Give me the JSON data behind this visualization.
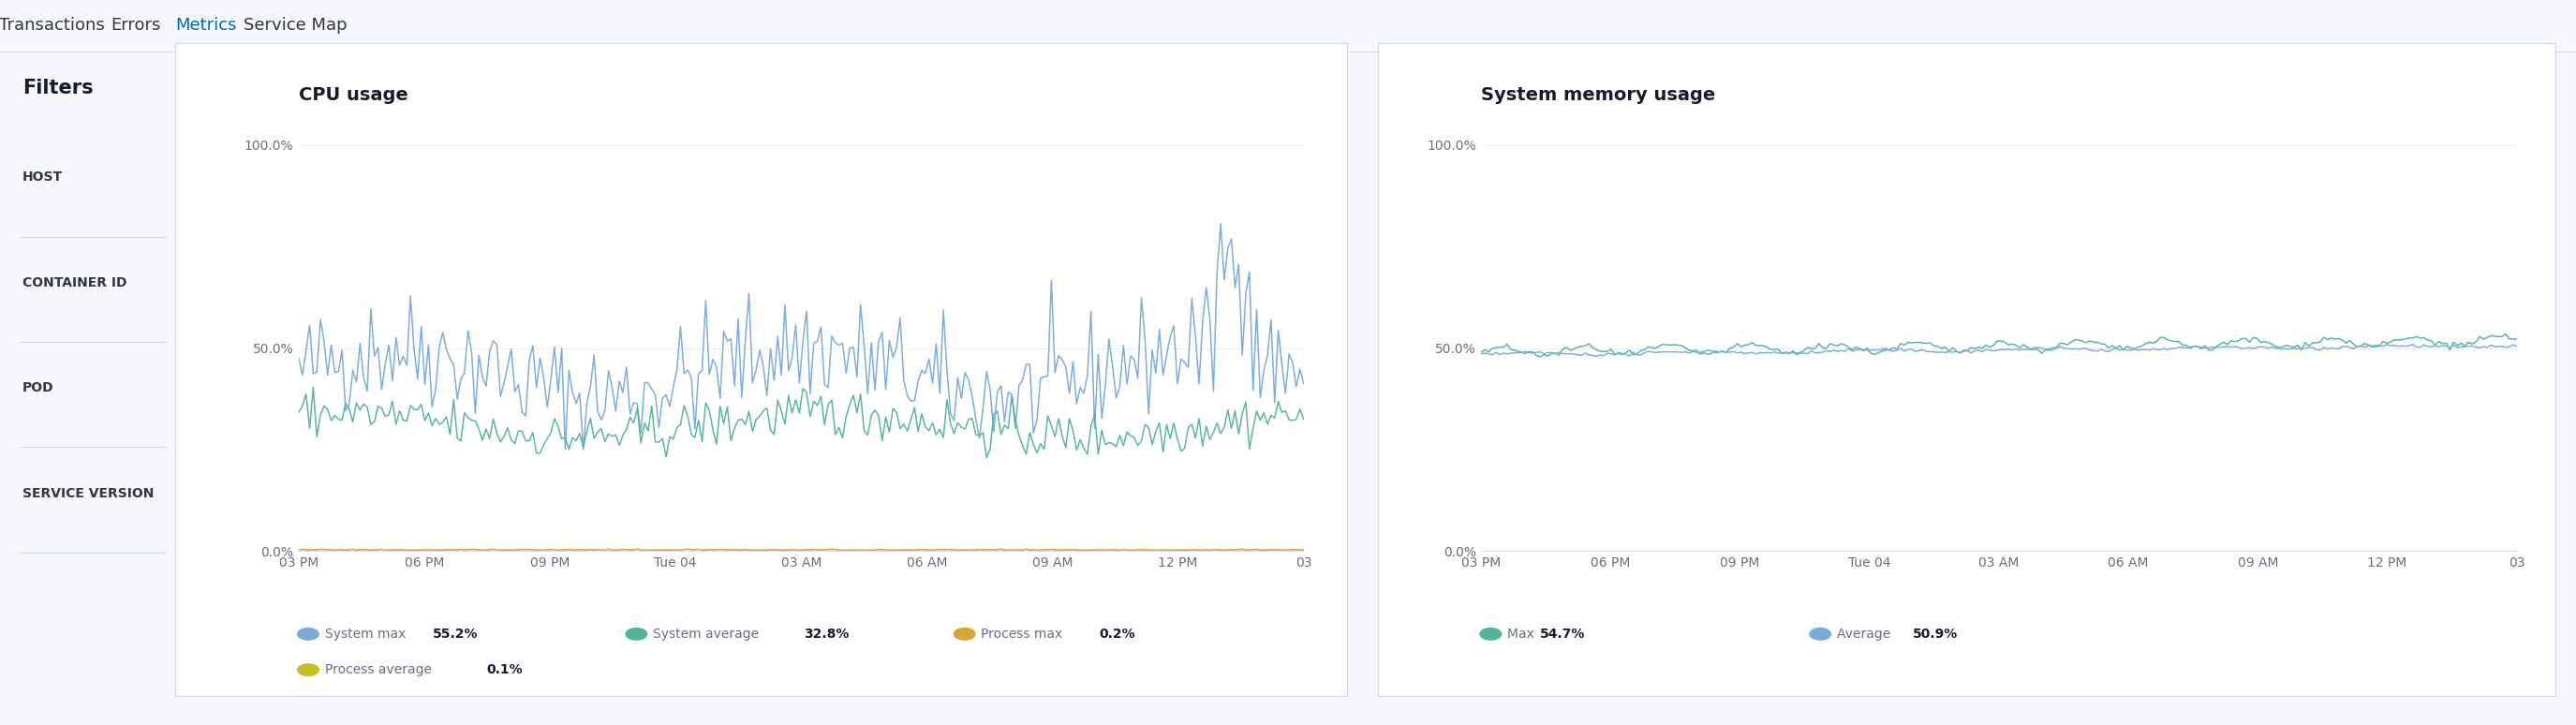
{
  "bg_color": "#f5f7fa",
  "panel_color": "#ffffff",
  "tab_bar_color": "#ffffff",
  "tab_labels": [
    "Transactions",
    "Errors",
    "Metrics",
    "Service Map"
  ],
  "active_tab": "Metrics",
  "active_tab_color": "#006BB4",
  "tab_underline_color": "#006BB4",
  "tab_text_color": "#343741",
  "tab_border_color": "#d3dae6",
  "filter_title": "Filters",
  "filter_items": [
    "HOST",
    "CONTAINER ID",
    "POD",
    "SERVICE VERSION"
  ],
  "filter_divider_color": "#d3dae6",
  "cpu_title": "CPU usage",
  "mem_title": "System memory usage",
  "x_tick_labels": [
    "03 PM",
    "06 PM",
    "09 PM",
    "Tue 04",
    "03 AM",
    "06 AM",
    "09 AM",
    "12 PM",
    "03"
  ],
  "y_tick_labels": [
    "0.0%",
    "50.0%",
    "100.0%"
  ],
  "y_tick_values": [
    0.0,
    0.5,
    1.0
  ],
  "grid_color": "#eef0f3",
  "axis_line_color": "#d3dae6",
  "cpu_legend": [
    {
      "label": "System max",
      "value": "55.2%",
      "color": "#79aad9"
    },
    {
      "label": "System average",
      "value": "32.8%",
      "color": "#54b399"
    },
    {
      "label": "Process max",
      "value": "0.2%",
      "color": "#d6a23a"
    },
    {
      "label": "Process average",
      "value": "0.1%",
      "color": "#c5c124"
    }
  ],
  "mem_legend": [
    {
      "label": "Max",
      "value": "54.7%",
      "color": "#54b399"
    },
    {
      "label": "Average",
      "value": "50.9%",
      "color": "#79aad9"
    }
  ],
  "title_fontsize": 14,
  "axis_fontsize": 10,
  "legend_fontsize": 10,
  "tab_fontsize": 13,
  "filter_title_fontsize": 15,
  "filter_item_fontsize": 10,
  "tick_color": "#69707d",
  "text_color": "#1a1a2e",
  "label_color": "#69707d",
  "panel_border_color": "#d3dae6"
}
